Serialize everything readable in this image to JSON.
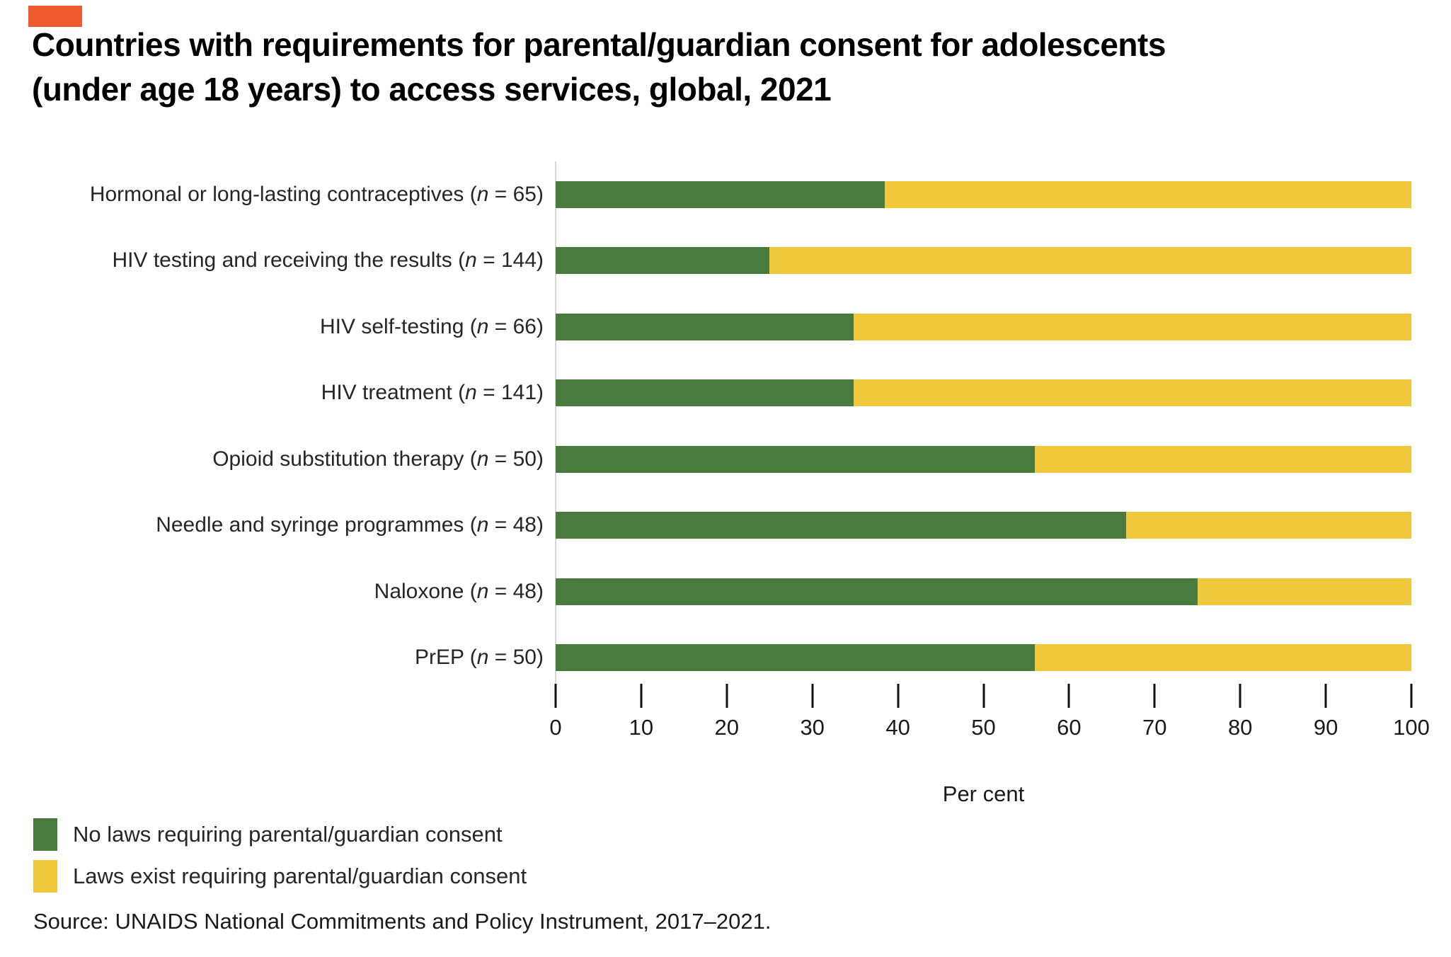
{
  "brand": {
    "mark_color": "#EE5B2F"
  },
  "title": {
    "line1": "Countries with requirements for parental/guardian consent for adolescents",
    "line2": "(under age 18 years) to access services, global, 2021"
  },
  "chart_data": {
    "type": "bar",
    "orientation": "horizontal",
    "stacked": true,
    "title": "Countries with requirements for parental/guardian consent for adolescents (under age 18 years) to access services, global, 2021",
    "categories": [
      "Hormonal or long-lasting contraceptives (n = 65)",
      "HIV testing and receiving the results (n = 144)",
      "HIV self-testing (n = 66)",
      "HIV treatment (n = 141)",
      "Opioid substitution therapy (n = 50)",
      "Needle and syringe programmes (n = 48)",
      "Naloxone (n = 48)",
      "PrEP (n = 50)"
    ],
    "series": [
      {
        "name": "No laws requiring parental/guardian consent",
        "color": "#4A7B3E",
        "values": [
          38.5,
          25.0,
          34.8,
          34.8,
          56.0,
          66.7,
          75.0,
          56.0
        ]
      },
      {
        "name": "Laws exist requiring parental/guardian consent",
        "color": "#EFC83B",
        "values": [
          61.5,
          75.0,
          65.2,
          65.2,
          44.0,
          33.3,
          25.0,
          44.0
        ]
      }
    ],
    "xlabel": "Per cent",
    "xlim": [
      0,
      100
    ],
    "x_ticks": [
      0,
      10,
      20,
      30,
      40,
      50,
      60,
      70,
      80,
      90,
      100
    ],
    "grid": false,
    "legend_position": "bottom-left"
  },
  "source": "Source: UNAIDS National Commitments and Policy Instrument, 2017–2021."
}
